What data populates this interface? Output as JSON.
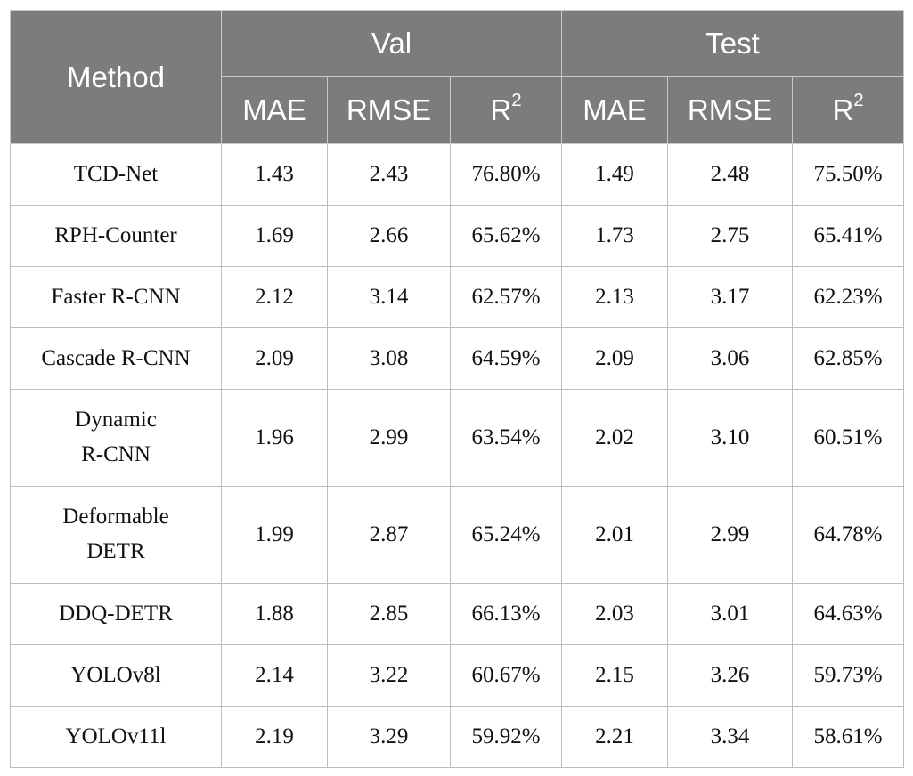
{
  "header": {
    "method": "Method",
    "val": "Val",
    "test": "Test",
    "sub": [
      "MAE",
      "RMSE",
      "R",
      "MAE",
      "RMSE",
      "R"
    ],
    "r2_sup": "2"
  },
  "rows": [
    {
      "method": "TCD-Net",
      "values": [
        "1.43",
        "2.43",
        "76.80%",
        "1.49",
        "2.48",
        "75.50%"
      ]
    },
    {
      "method": "RPH-Counter",
      "values": [
        "1.69",
        "2.66",
        "65.62%",
        "1.73",
        "2.75",
        "65.41%"
      ]
    },
    {
      "method": "Faster R-CNN",
      "values": [
        "2.12",
        "3.14",
        "62.57%",
        "2.13",
        "3.17",
        "62.23%"
      ]
    },
    {
      "method": "Cascade R-CNN",
      "values": [
        "2.09",
        "3.08",
        "64.59%",
        "2.09",
        "3.06",
        "62.85%"
      ]
    },
    {
      "method": "Dynamic\nR-CNN",
      "values": [
        "1.96",
        "2.99",
        "63.54%",
        "2.02",
        "3.10",
        "60.51%"
      ]
    },
    {
      "method": "Deformable\nDETR",
      "values": [
        "1.99",
        "2.87",
        "65.24%",
        "2.01",
        "2.99",
        "64.78%"
      ]
    },
    {
      "method": "DDQ-DETR",
      "values": [
        "1.88",
        "2.85",
        "66.13%",
        "2.03",
        "3.01",
        "64.63%"
      ]
    },
    {
      "method": "YOLOv8l",
      "values": [
        "2.14",
        "3.22",
        "60.67%",
        "2.15",
        "3.26",
        "59.73%"
      ]
    },
    {
      "method": "YOLOv11l",
      "values": [
        "2.19",
        "3.29",
        "59.92%",
        "2.21",
        "3.34",
        "58.61%"
      ]
    }
  ]
}
